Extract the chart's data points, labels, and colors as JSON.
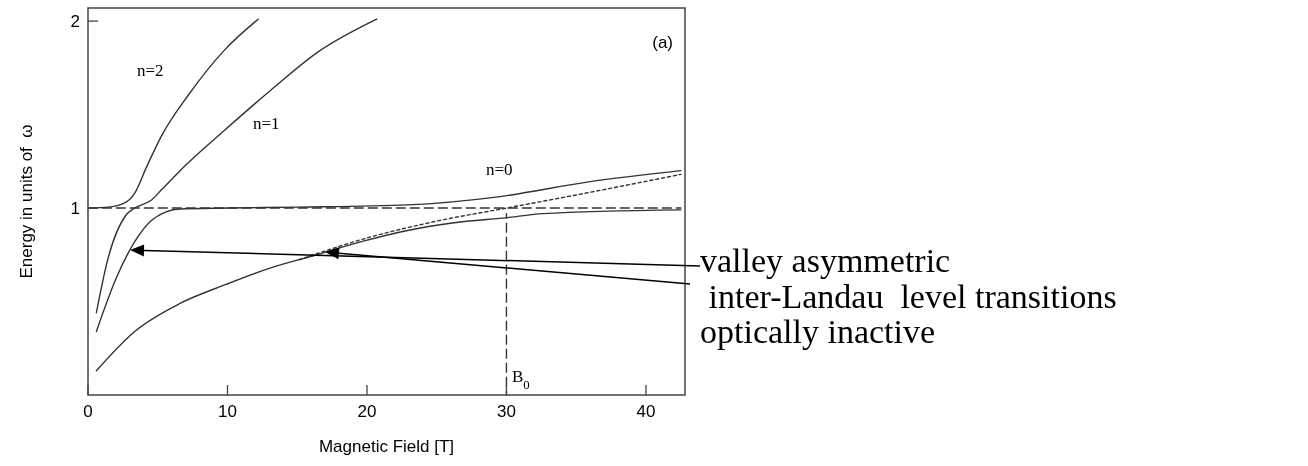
{
  "chart_data": {
    "type": "line",
    "xlabel": "Magnetic Field [T]",
    "ylabel": "Energy in units of  ω",
    "xlim": [
      0,
      42.8
    ],
    "ylim": [
      0,
      2.07
    ],
    "xticks": [
      0,
      10,
      20,
      30,
      40
    ],
    "yticks": [
      1,
      2
    ],
    "grid": false,
    "series": [
      {
        "color": "#333333",
        "line_style": "solid",
        "x": [
          0,
          1.5,
          2.7,
          3.35,
          4.2,
          5.3,
          7.25,
          9.85,
          12.2
        ],
        "values": [
          1,
          1.005,
          1.03,
          1.08,
          1.22,
          1.39,
          1.61,
          1.85,
          2.01
        ]
      },
      {
        "color": "#333333",
        "line_style": "solid",
        "x": [
          0.6,
          1.4,
          2.7,
          3.35,
          4.5,
          5.3,
          6.6,
          9.85,
          13.1,
          16.4,
          20.7
        ],
        "values": [
          0.44,
          0.72,
          0.96,
          1.0,
          1.04,
          1.1,
          1.2,
          1.42,
          1.63,
          1.83,
          2.01
        ]
      },
      {
        "color": "#333333",
        "line_style": "solid",
        "x": [
          0.6,
          2.05,
          3.35,
          4.65,
          6.6,
          10,
          15,
          22.9,
          29.4,
          35.9,
          42.5
        ],
        "values": [
          0.34,
          0.63,
          0.82,
          0.94,
          0.995,
          1.0,
          1.005,
          1.017,
          1.06,
          1.14,
          1.2
        ]
      },
      {
        "color": "#333333",
        "line_style": "solid",
        "x": [
          0.6,
          3.35,
          6.6,
          9.85,
          13.1,
          16.4,
          19.6,
          22.9,
          26.1,
          30.2,
          32.6,
          42.5
        ],
        "values": [
          0.13,
          0.34,
          0.49,
          0.59,
          0.68,
          0.75,
          0.82,
          0.88,
          0.92,
          0.95,
          0.97,
          0.99
        ]
      },
      {
        "color": "#333333",
        "line_style": "dashed",
        "x": [
          0,
          42.5
        ],
        "values": [
          1,
          1
        ]
      },
      {
        "color": "#333333",
        "line_style": "dotted",
        "x": [
          15,
          20,
          25,
          30,
          35,
          42.5
        ],
        "values": [
          0.72,
          0.84,
          0.93,
          1.0,
          1.07,
          1.18
        ]
      },
      {
        "color": "#333333",
        "line_style": "dashed",
        "x": [
          30,
          30
        ],
        "values": [
          0,
          0.97
        ]
      }
    ],
    "annotations": [
      "n=2",
      "n=1",
      "n=0",
      "B$_{0}$",
      "(a)",
      "valley asymmetric",
      " inter-Landau  level transitions",
      "optically inactive"
    ]
  }
}
